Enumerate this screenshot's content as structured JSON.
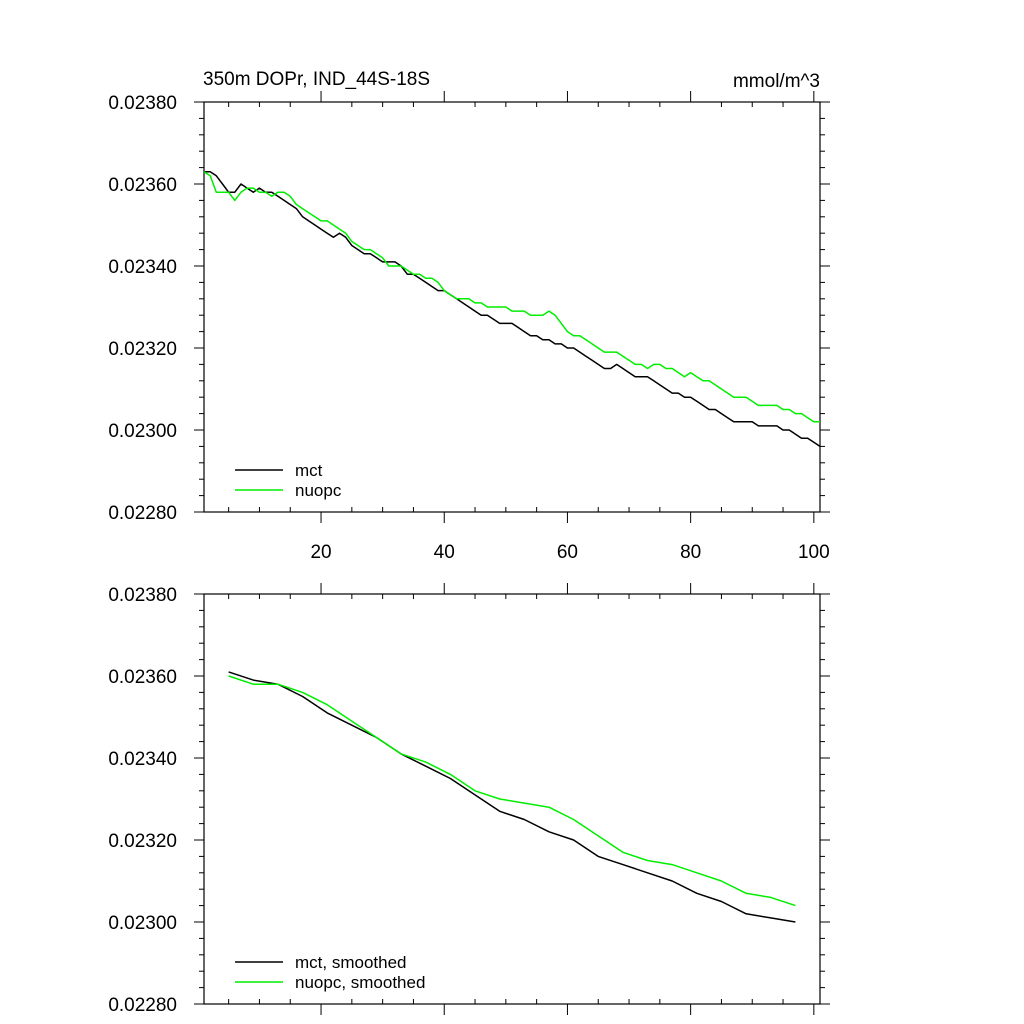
{
  "chart_data": [
    {
      "type": "line",
      "title": "350m DOPr, IND_44S-18S",
      "units": "mmol/m^3",
      "xlabel": "",
      "ylabel": "",
      "xlim": [
        1,
        101
      ],
      "ylim": [
        0.0228,
        0.0238
      ],
      "xticks": [
        20,
        40,
        60,
        80,
        100
      ],
      "xtick_labels": [
        "20",
        "40",
        "60",
        "80",
        "100"
      ],
      "yticks": [
        0.0228,
        0.023,
        0.0232,
        0.0234,
        0.0236,
        0.0238
      ],
      "ytick_labels": [
        "0.02280",
        "0.02300",
        "0.02320",
        "0.02340",
        "0.02360",
        "0.02380"
      ],
      "legend_position": "bottom-left",
      "series": [
        {
          "name": "mct",
          "color": "#000000",
          "x": [
            1,
            2,
            3,
            4,
            5,
            6,
            7,
            8,
            9,
            10,
            11,
            12,
            13,
            14,
            15,
            16,
            17,
            18,
            19,
            20,
            21,
            22,
            23,
            24,
            25,
            26,
            27,
            28,
            29,
            30,
            31,
            32,
            33,
            34,
            35,
            36,
            37,
            38,
            39,
            40,
            41,
            42,
            43,
            44,
            45,
            46,
            47,
            48,
            49,
            50,
            51,
            52,
            53,
            54,
            55,
            56,
            57,
            58,
            59,
            60,
            61,
            62,
            63,
            64,
            65,
            66,
            67,
            68,
            69,
            70,
            71,
            72,
            73,
            74,
            75,
            76,
            77,
            78,
            79,
            80,
            81,
            82,
            83,
            84,
            85,
            86,
            87,
            88,
            89,
            90,
            91,
            92,
            93,
            94,
            95,
            96,
            97,
            98,
            99,
            100,
            101
          ],
          "values": [
            0.02363,
            0.02363,
            0.02362,
            0.0236,
            0.02358,
            0.02358,
            0.0236,
            0.02359,
            0.02358,
            0.02359,
            0.02358,
            0.02358,
            0.02357,
            0.02356,
            0.02355,
            0.02354,
            0.02352,
            0.02351,
            0.0235,
            0.02349,
            0.02348,
            0.02347,
            0.02348,
            0.02347,
            0.02345,
            0.02344,
            0.02343,
            0.02343,
            0.02342,
            0.02341,
            0.02341,
            0.02341,
            0.0234,
            0.02338,
            0.02338,
            0.02337,
            0.02336,
            0.02335,
            0.02334,
            0.02334,
            0.02333,
            0.02332,
            0.02331,
            0.0233,
            0.02329,
            0.02328,
            0.02328,
            0.02327,
            0.02326,
            0.02326,
            0.02326,
            0.02325,
            0.02324,
            0.02323,
            0.02323,
            0.02322,
            0.02322,
            0.02321,
            0.02321,
            0.0232,
            0.0232,
            0.02319,
            0.02318,
            0.02317,
            0.02316,
            0.02315,
            0.02315,
            0.02316,
            0.02315,
            0.02314,
            0.02313,
            0.02313,
            0.02313,
            0.02312,
            0.02311,
            0.0231,
            0.02309,
            0.02309,
            0.02308,
            0.02308,
            0.02307,
            0.02306,
            0.02305,
            0.02305,
            0.02304,
            0.02303,
            0.02302,
            0.02302,
            0.02302,
            0.02302,
            0.02301,
            0.02301,
            0.02301,
            0.02301,
            0.023,
            0.023,
            0.02299,
            0.02298,
            0.02298,
            0.02297,
            0.02296
          ]
        },
        {
          "name": "nuopc",
          "color": "#00ee00",
          "x": [
            1,
            2,
            3,
            4,
            5,
            6,
            7,
            8,
            9,
            10,
            11,
            12,
            13,
            14,
            15,
            16,
            17,
            18,
            19,
            20,
            21,
            22,
            23,
            24,
            25,
            26,
            27,
            28,
            29,
            30,
            31,
            32,
            33,
            34,
            35,
            36,
            37,
            38,
            39,
            40,
            41,
            42,
            43,
            44,
            45,
            46,
            47,
            48,
            49,
            50,
            51,
            52,
            53,
            54,
            55,
            56,
            57,
            58,
            59,
            60,
            61,
            62,
            63,
            64,
            65,
            66,
            67,
            68,
            69,
            70,
            71,
            72,
            73,
            74,
            75,
            76,
            77,
            78,
            79,
            80,
            81,
            82,
            83,
            84,
            85,
            86,
            87,
            88,
            89,
            90,
            91,
            92,
            93,
            94,
            95,
            96,
            97,
            98,
            99,
            100,
            101
          ],
          "values": [
            0.02363,
            0.02362,
            0.02358,
            0.02358,
            0.02358,
            0.02356,
            0.02358,
            0.02359,
            0.02359,
            0.02358,
            0.02358,
            0.02357,
            0.02358,
            0.02358,
            0.02357,
            0.02355,
            0.02354,
            0.02353,
            0.02352,
            0.02351,
            0.02351,
            0.0235,
            0.02349,
            0.02348,
            0.02346,
            0.02345,
            0.02344,
            0.02344,
            0.02343,
            0.02342,
            0.0234,
            0.0234,
            0.0234,
            0.02339,
            0.02338,
            0.02338,
            0.02337,
            0.02337,
            0.02336,
            0.02334,
            0.02333,
            0.02332,
            0.02332,
            0.02332,
            0.02331,
            0.02331,
            0.0233,
            0.0233,
            0.0233,
            0.0233,
            0.02329,
            0.02329,
            0.02329,
            0.02328,
            0.02328,
            0.02328,
            0.02329,
            0.02328,
            0.02326,
            0.02324,
            0.02323,
            0.02323,
            0.02322,
            0.02321,
            0.0232,
            0.02319,
            0.02319,
            0.02319,
            0.02318,
            0.02317,
            0.02316,
            0.02316,
            0.02315,
            0.02316,
            0.02316,
            0.02315,
            0.02315,
            0.02314,
            0.02313,
            0.02314,
            0.02313,
            0.02312,
            0.02312,
            0.02311,
            0.0231,
            0.02309,
            0.02308,
            0.02308,
            0.02308,
            0.02307,
            0.02306,
            0.02306,
            0.02306,
            0.02306,
            0.02305,
            0.02305,
            0.02304,
            0.02304,
            0.02303,
            0.02302,
            0.02302
          ]
        }
      ]
    },
    {
      "type": "line",
      "title": "",
      "xlabel": "",
      "ylabel": "",
      "xlim": [
        1,
        101
      ],
      "ylim": [
        0.0228,
        0.0238
      ],
      "xticks": [
        20,
        40,
        60,
        80,
        100
      ],
      "yticks": [
        0.0228,
        0.023,
        0.0232,
        0.0234,
        0.0236,
        0.0238
      ],
      "ytick_labels": [
        "0.02280",
        "0.02300",
        "0.02320",
        "0.02340",
        "0.02360",
        "0.02380"
      ],
      "legend_position": "bottom-left",
      "series": [
        {
          "name": "mct, smoothed",
          "color": "#000000",
          "x": [
            5,
            9,
            13,
            17,
            21,
            25,
            29,
            33,
            37,
            41,
            45,
            49,
            53,
            57,
            61,
            65,
            69,
            73,
            77,
            81,
            85,
            89,
            93,
            97
          ],
          "values": [
            0.02361,
            0.02359,
            0.02358,
            0.02355,
            0.02351,
            0.02348,
            0.02345,
            0.02341,
            0.02338,
            0.02335,
            0.02331,
            0.02327,
            0.02325,
            0.02322,
            0.0232,
            0.02316,
            0.02314,
            0.02312,
            0.0231,
            0.02307,
            0.02305,
            0.02302,
            0.02301,
            0.023
          ]
        },
        {
          "name": "nuopc, smoothed",
          "color": "#00ee00",
          "x": [
            5,
            9,
            13,
            17,
            21,
            25,
            29,
            33,
            37,
            41,
            45,
            49,
            53,
            57,
            61,
            65,
            69,
            73,
            77,
            81,
            85,
            89,
            93,
            97
          ],
          "values": [
            0.0236,
            0.02358,
            0.02358,
            0.02356,
            0.02353,
            0.02349,
            0.02345,
            0.02341,
            0.02339,
            0.02336,
            0.02332,
            0.0233,
            0.02329,
            0.02328,
            0.02325,
            0.02321,
            0.02317,
            0.02315,
            0.02314,
            0.02312,
            0.0231,
            0.02307,
            0.02306,
            0.02304
          ]
        }
      ]
    }
  ]
}
